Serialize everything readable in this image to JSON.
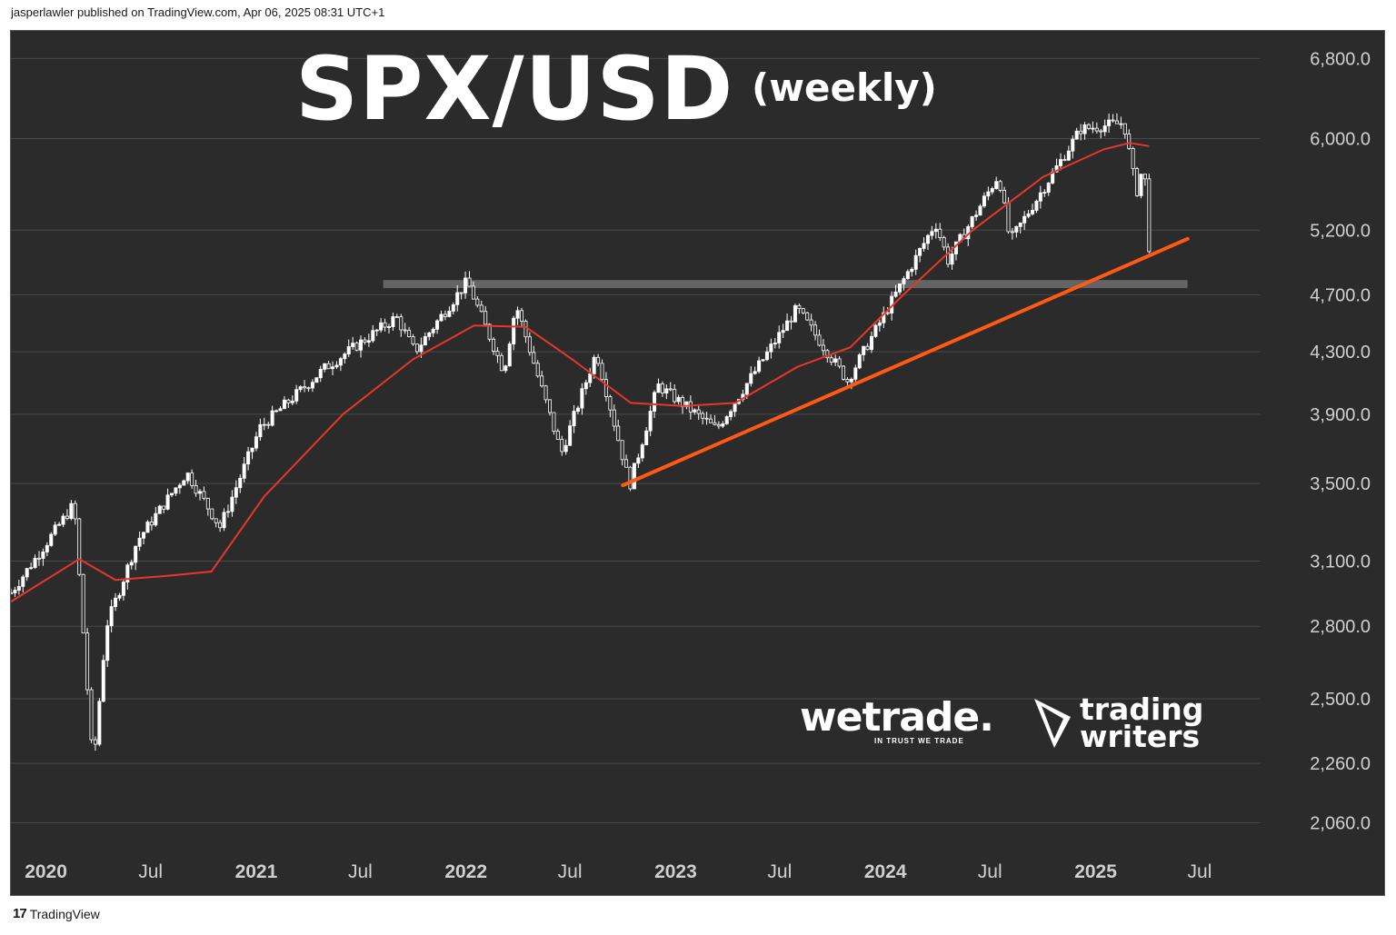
{
  "header": {
    "published": "jasperlawler published on TradingView.com, Apr 06, 2025 08:31 UTC+1"
  },
  "footer": {
    "brand": "TradingView",
    "logo_text": "17"
  },
  "watermarks": {
    "wetrade_name": "wetrade.",
    "wetrade_tagline": "IN TRUST WE TRADE",
    "trading_writers_line1": "trading",
    "trading_writers_line2": "writers"
  },
  "colors": {
    "background": "#2b2b2b",
    "grid": "#484848",
    "candle": "#ffffff",
    "ma": "#e8362a",
    "trendline": "#ff5a14",
    "resistance_zone": "#6a6a6a",
    "text": "#ffffff",
    "axis_text": "#d0d0d0"
  },
  "chart_data": {
    "type": "candlestick",
    "title": "SPX/USD",
    "subtitle": "(weekly)",
    "scale": "log",
    "ylim": [
      1950,
      7100
    ],
    "y_ticks": [
      "6,800.0",
      "6,000.0",
      "5,200.0",
      "4,700.0",
      "4,300.0",
      "3,900.0",
      "3,500.0",
      "3,100.0",
      "2,800.0",
      "2,500.0",
      "2,260.0",
      "2,060.0"
    ],
    "y_tick_values": [
      6800,
      6000,
      5200,
      4700,
      4300,
      3900,
      3500,
      3100,
      2800,
      2500,
      2260,
      2060
    ],
    "x_ticks": [
      {
        "label": "2020",
        "date": "2020-01-01",
        "bold": true
      },
      {
        "label": "Jul",
        "date": "2020-07-01",
        "bold": false
      },
      {
        "label": "2021",
        "date": "2021-01-01",
        "bold": true
      },
      {
        "label": "Jul",
        "date": "2021-07-01",
        "bold": false
      },
      {
        "label": "2022",
        "date": "2022-01-01",
        "bold": true
      },
      {
        "label": "Jul",
        "date": "2022-07-01",
        "bold": false
      },
      {
        "label": "2023",
        "date": "2023-01-01",
        "bold": true
      },
      {
        "label": "Jul",
        "date": "2023-07-01",
        "bold": false
      },
      {
        "label": "2024",
        "date": "2024-01-01",
        "bold": true
      },
      {
        "label": "Jul",
        "date": "2024-07-01",
        "bold": false
      },
      {
        "label": "2025",
        "date": "2025-01-01",
        "bold": true
      },
      {
        "label": "Jul",
        "date": "2025-07-01",
        "bold": false
      }
    ],
    "x_range": [
      "2019-11-01",
      "2025-10-15"
    ],
    "grid": "horizontal",
    "price_path": [
      [
        "2019-11-01",
        2950
      ],
      [
        "2020-02-19",
        3390
      ],
      [
        "2020-03-23",
        2240
      ],
      [
        "2020-04-15",
        2800
      ],
      [
        "2020-06-08",
        3200
      ],
      [
        "2020-09-02",
        3560
      ],
      [
        "2020-10-30",
        3270
      ],
      [
        "2021-01-08",
        3820
      ],
      [
        "2021-04-30",
        4190
      ],
      [
        "2021-09-02",
        4540
      ],
      [
        "2021-10-04",
        4300
      ],
      [
        "2022-01-03",
        4800
      ],
      [
        "2022-03-08",
        4170
      ],
      [
        "2022-03-29",
        4630
      ],
      [
        "2022-06-16",
        3670
      ],
      [
        "2022-08-16",
        4300
      ],
      [
        "2022-10-13",
        3490
      ],
      [
        "2022-12-01",
        4080
      ],
      [
        "2023-03-13",
        3810
      ],
      [
        "2023-07-31",
        4600
      ],
      [
        "2023-10-27",
        4110
      ],
      [
        "2024-03-28",
        5260
      ],
      [
        "2024-04-19",
        4960
      ],
      [
        "2024-07-16",
        5670
      ],
      [
        "2024-08-05",
        5110
      ],
      [
        "2024-12-06",
        6090
      ],
      [
        "2025-02-19",
        6150
      ],
      [
        "2025-03-13",
        5510
      ],
      [
        "2025-03-26",
        5780
      ],
      [
        "2025-04-04",
        5070
      ]
    ],
    "moving_average": [
      [
        "2019-11-01",
        2910
      ],
      [
        "2020-02-28",
        3110
      ],
      [
        "2020-05-01",
        3010
      ],
      [
        "2020-08-01",
        3030
      ],
      [
        "2020-10-15",
        3050
      ],
      [
        "2021-01-15",
        3430
      ],
      [
        "2021-06-01",
        3900
      ],
      [
        "2021-10-01",
        4250
      ],
      [
        "2022-01-15",
        4480
      ],
      [
        "2022-04-15",
        4470
      ],
      [
        "2022-07-01",
        4260
      ],
      [
        "2022-10-15",
        3970
      ],
      [
        "2023-01-15",
        3950
      ],
      [
        "2023-04-15",
        3970
      ],
      [
        "2023-08-01",
        4200
      ],
      [
        "2023-11-01",
        4330
      ],
      [
        "2024-02-01",
        4700
      ],
      [
        "2024-06-01",
        5200
      ],
      [
        "2024-10-01",
        5650
      ],
      [
        "2025-01-15",
        5900
      ],
      [
        "2025-03-01",
        5960
      ],
      [
        "2025-04-04",
        5930
      ]
    ],
    "annotations": {
      "trendline": {
        "from": [
          "2022-10-01",
          3490
        ],
        "to": [
          "2025-06-10",
          5130
        ]
      },
      "resistance_zone": {
        "from": "2021-08-10",
        "to": "2025-06-10",
        "low": 4750,
        "high": 4810
      }
    }
  }
}
